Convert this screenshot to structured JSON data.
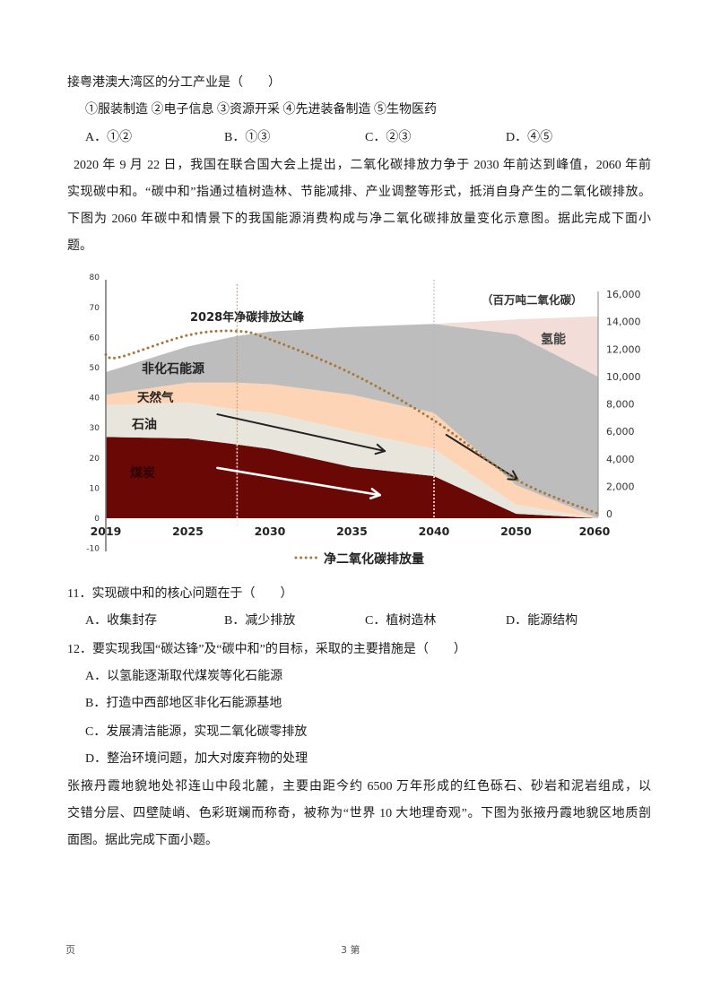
{
  "prev_question": {
    "stem": "接粤港澳大湾区的分工产业是（　　）",
    "items": "①服装制造 ②电子信息 ③资源开采 ④先进装备制造 ⑤生物医药",
    "options": [
      "A．①②",
      "B．①③",
      "C．②③",
      "D．④⑤"
    ]
  },
  "material_1": {
    "lines": [
      "2020 年 9 月 22 日，我国在联合国大会上提出，二氧化碳排放力争于 2030 年前达到峰值，2060 年前",
      "实现碳中和。“碳中和”指通过植树造林、节能减排、产业调整等形式，抵消自身产生的二氧化碳排放。",
      "下图为 2060 年碳中和情景下的我国能源消费构成与净二氧化碳排放量变化示意图。据此完成下面小",
      "题。"
    ]
  },
  "chart_data": {
    "type": "area",
    "title": "",
    "categories": [
      2019,
      2025,
      2028,
      2030,
      2035,
      2040,
      2050,
      2060
    ],
    "x_axis": {
      "label": "",
      "ticks": [
        2019,
        2025,
        2030,
        2035,
        2040,
        2050,
        2060
      ]
    },
    "y_left": {
      "label": "",
      "range": [
        -10,
        80
      ],
      "ticks": [
        80,
        70,
        60,
        50,
        40,
        30,
        20,
        10,
        0,
        -10
      ]
    },
    "y_right": {
      "label": "（百万吨二氧化碳）",
      "range": [
        0,
        16000
      ],
      "ticks": [
        16000,
        14000,
        12000,
        10000,
        8000,
        6000,
        4000,
        2000,
        0
      ],
      "tick_labels": [
        "16,000",
        "14,000",
        "12,000",
        "10,000",
        "8,000",
        "6,000",
        "4,000",
        "2,000",
        "0"
      ]
    },
    "series": [
      {
        "key": "coal",
        "name": "煤炭",
        "type": "area",
        "axis": "left",
        "color": "#6a0806",
        "values": [
          27,
          26.5,
          24.5,
          23,
          17,
          14,
          1.5,
          0
        ]
      },
      {
        "key": "oil",
        "name": "石油",
        "type": "area",
        "axis": "left",
        "color": "#e8e5dc",
        "values": [
          10.5,
          12,
          11.5,
          12,
          12,
          9,
          3,
          0
        ]
      },
      {
        "key": "gas",
        "name": "天然气",
        "type": "area",
        "axis": "left",
        "color": "#fdd4b6",
        "values": [
          3.5,
          6.5,
          9,
          9.5,
          12,
          12,
          6.5,
          0
        ]
      },
      {
        "key": "non_fossil",
        "name": "非化石能源",
        "type": "area",
        "axis": "left",
        "color": "#bdbdbd",
        "values": [
          7.5,
          12,
          15.5,
          17.5,
          22.5,
          29.5,
          50,
          47
        ]
      },
      {
        "key": "hydrogen",
        "name": "氢能",
        "type": "area",
        "axis": "left",
        "color": "#f2ddd8",
        "values": [
          0,
          0,
          0,
          0,
          0,
          0,
          5,
          20
        ]
      },
      {
        "key": "net_co2",
        "name": "净二氧化碳排放量",
        "type": "line",
        "style": "dotted",
        "axis": "right",
        "color": "#a8763a",
        "x": [
          2019,
          2020,
          2025,
          2028,
          2030,
          2035,
          2040,
          2050,
          2060
        ],
        "values": [
          11600,
          11400,
          13000,
          13300,
          12700,
          10200,
          6800,
          2500,
          0
        ]
      }
    ],
    "markers": [
      {
        "year": 2028,
        "label": "2028年净碳排放达峰",
        "color": "#c59868"
      },
      {
        "year": 2040,
        "label": "",
        "color": "#b8b8b8"
      }
    ],
    "arrows": [
      {
        "from": [
          2026.8,
          34.5
        ],
        "to": [
          2037.0,
          22.3
        ],
        "color": "#222222"
      },
      {
        "from": [
          2026.8,
          16.7
        ],
        "to": [
          2036.7,
          7.7
        ],
        "color": "#ffffff"
      },
      {
        "from": [
          2041.5,
          27.7
        ],
        "to": [
          2050.2,
          12.8
        ],
        "color": "#222222"
      }
    ],
    "legend": {
      "position": "bottom",
      "entries": [
        "净二氧化碳排放量"
      ]
    },
    "grid": false
  },
  "q11": {
    "stem": "11．实现碳中和的核心问题在于（　　）",
    "options": [
      "A．收集封存",
      "B．减少排放",
      "C．植树造林",
      "D．能源结构"
    ]
  },
  "q12": {
    "stem": "12．要实现我国“碳达锋”及“碳中和”的目标，采取的主要措施是（　　）",
    "options": [
      "A．以氢能逐渐取代煤炭等化石能源",
      "B．打造中西部地区非化石能源基地",
      "C．发展清洁能源，实现二氧化碳零排放",
      "D．整治环境问题，加大对废弃物的处理"
    ]
  },
  "material_2": {
    "lines": [
      "张掖丹霞地貌地处祁连山中段北麓，主要由距今约 6500 万年形成的红色砾石、砂岩和泥岩组成，以",
      "交错分层、四壁陡峭、色彩斑斓而称奇，被称为“世界 10 大地理奇观”。下图为张掖丹霞地貌区地质剖",
      "面图。据此完成下面小题。"
    ]
  },
  "footer": {
    "left": "页",
    "center": "3 第"
  }
}
